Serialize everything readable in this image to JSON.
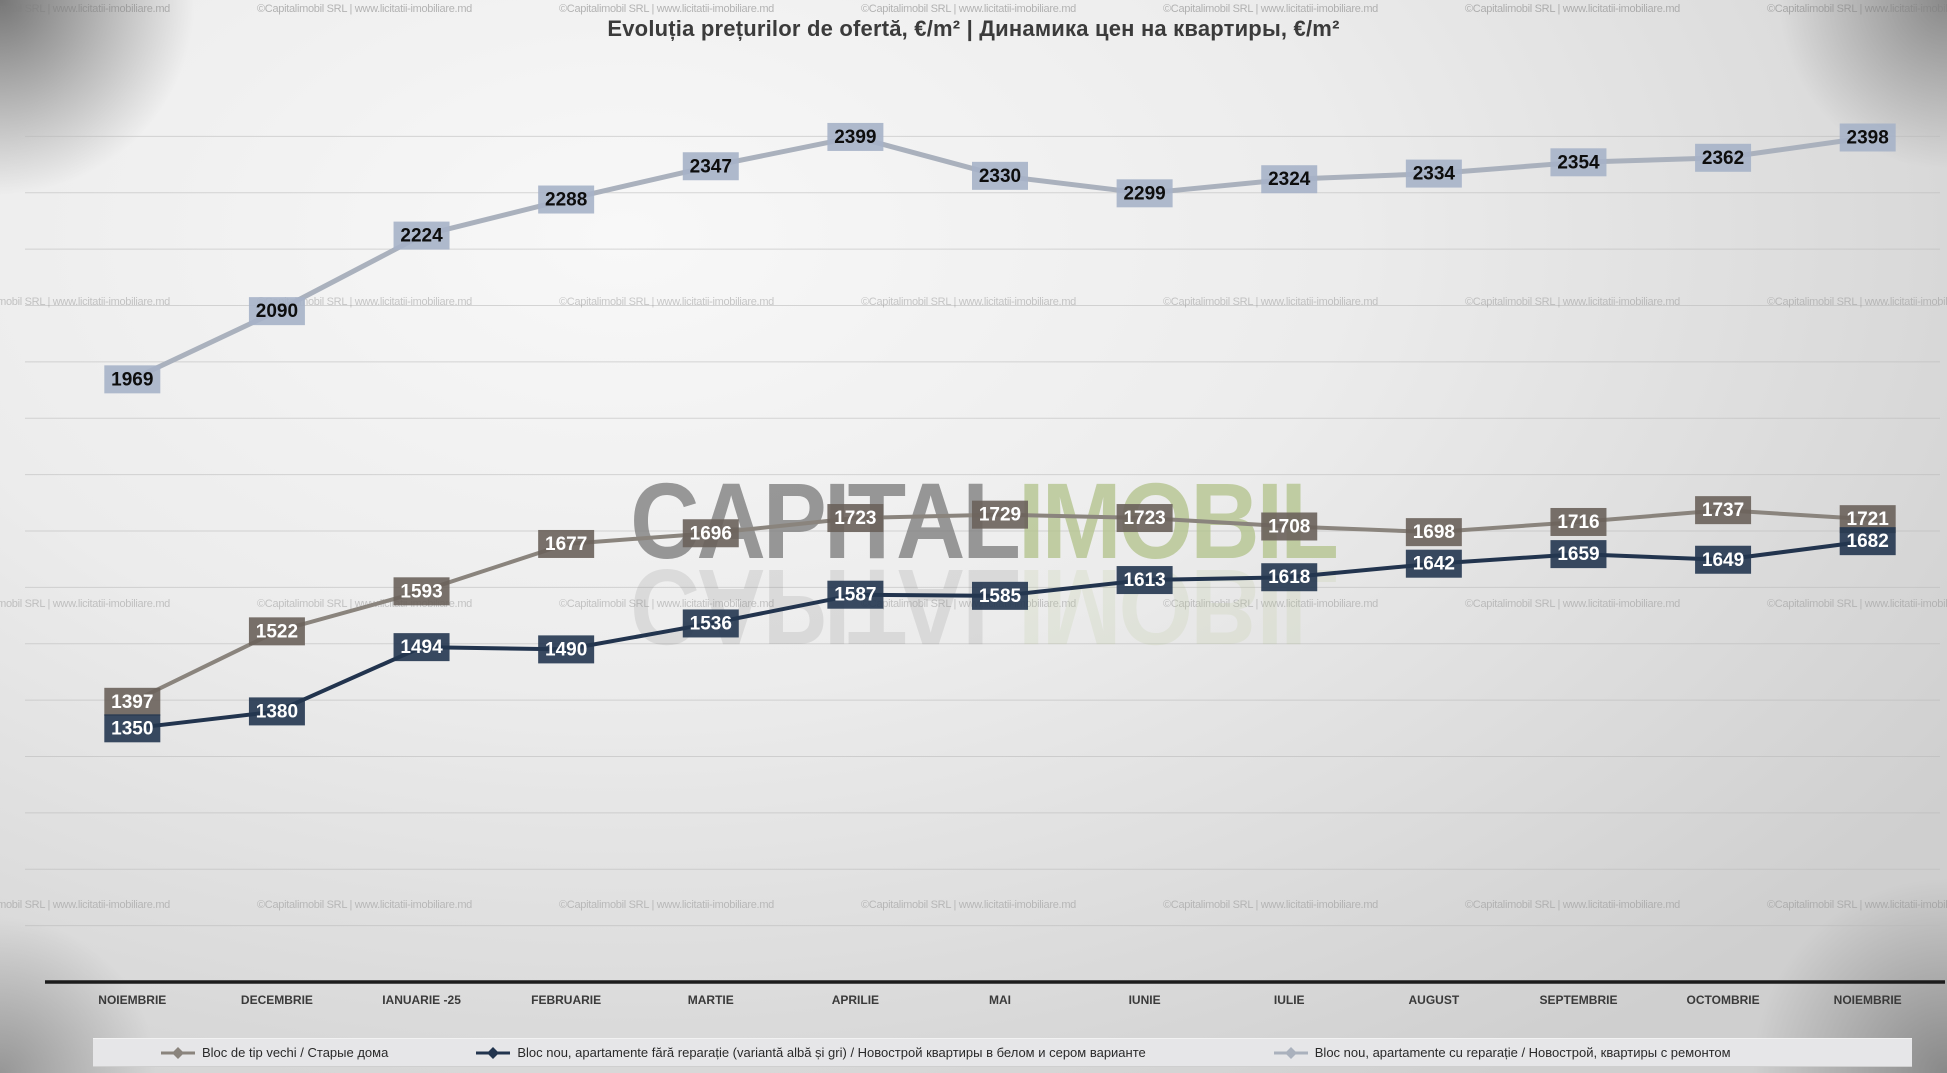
{
  "title": "Evoluția prețurilor de ofertă, €/m²  |  Динамика цен на квартиры, €/m²",
  "watermark": {
    "brand_left": "CAPITAL",
    "brand_right": "IMOBIL",
    "brand_left_color": "#7e7e7e",
    "brand_right_color": "#b4c48e",
    "copyright_text": "©Capitalimobil SRL | www.licitatii-imobiliare.md"
  },
  "chart_data": {
    "type": "line",
    "title": "Evoluția prețurilor de ofertă, €/m²  |  Динамика цен на квартиры, €/m²",
    "categories": [
      "NOIEMBRIE",
      "DECEMBRIE",
      "IANUARIE -25",
      "FEBRUARIE",
      "MARTIE",
      "APRILIE",
      "MAI",
      "IUNIE",
      "IULIE",
      "AUGUST",
      "SEPTEMBRIE",
      "OCTOMBRIE",
      "NOIEMBRIE"
    ],
    "series": [
      {
        "name": "Bloc de tip vechi / Старые дома",
        "line_color": "#8a847d",
        "label_bg": "#6a625b",
        "label_color": "#ffffff",
        "values": [
          1397,
          1522,
          1593,
          1677,
          1696,
          1723,
          1729,
          1723,
          1708,
          1698,
          1716,
          1737,
          1721
        ]
      },
      {
        "name": "Bloc nou, apartamente fără reparație (variantă albă și gri) / Новострой квартиры в белом и сером варианте",
        "line_color": "#22344e",
        "label_bg": "#233650",
        "label_color": "#ffffff",
        "values": [
          1350,
          1380,
          1494,
          1490,
          1536,
          1587,
          1585,
          1613,
          1618,
          1642,
          1659,
          1649,
          1682
        ]
      },
      {
        "name": "Bloc nou, apartamente cu reparație / Новострой, квартиры с ремонтом",
        "line_color": "#aab1bd",
        "label_bg": "#a6b3c8",
        "label_color": "#0d0d0d",
        "values": [
          1969,
          2090,
          2224,
          2288,
          2347,
          2399,
          2330,
          2299,
          2324,
          2334,
          2354,
          2362,
          2398
        ]
      }
    ],
    "ylim": [
      900,
      2500
    ],
    "grid_step": 100,
    "grid_visible": true,
    "legend_position": "bottom",
    "legend_order": [
      0,
      1,
      2
    ]
  }
}
